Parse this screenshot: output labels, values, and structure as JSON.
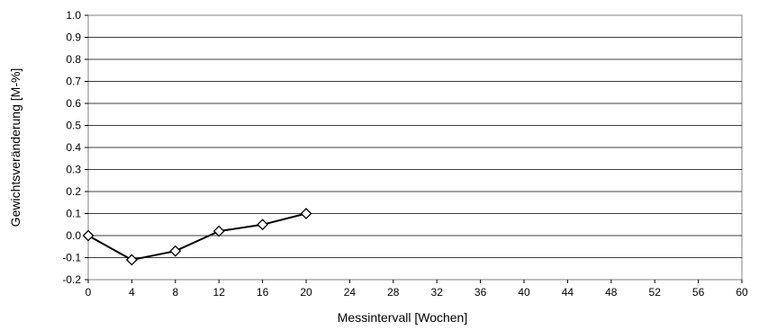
{
  "chart_data": {
    "type": "line",
    "title": "",
    "xlabel": "Messintervall [Wochen]",
    "ylabel": "Gewichtsveränderung [M-%]",
    "xlim": [
      0,
      60
    ],
    "ylim": [
      -0.2,
      1.0
    ],
    "x_ticks": [
      "0",
      "4",
      "8",
      "12",
      "16",
      "20",
      "24",
      "28",
      "32",
      "36",
      "40",
      "44",
      "48",
      "52",
      "56",
      "60"
    ],
    "y_ticks": [
      "1.0",
      "0.9",
      "0.8",
      "0.7",
      "0.6",
      "0.5",
      "0.4",
      "0.3",
      "0.2",
      "0.1",
      "0.0",
      "-0.1",
      "-0.2"
    ],
    "grid": "horizontal",
    "legend": "none",
    "series": [
      {
        "marker": "diamond-open",
        "color": "#000000",
        "x": [
          0,
          4,
          8,
          12,
          16,
          20
        ],
        "y": [
          0.0,
          -0.11,
          -0.07,
          0.02,
          0.05,
          0.1
        ]
      }
    ]
  }
}
